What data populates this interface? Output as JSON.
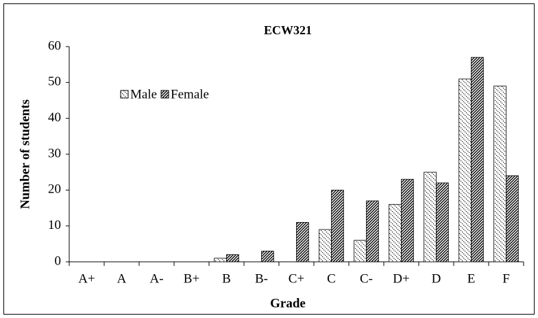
{
  "chart_data": {
    "type": "bar",
    "title": "ECW321",
    "x_label": "Grade",
    "y_label": "Number of students",
    "categories": [
      "A+",
      "A",
      "A-",
      "B+",
      "B",
      "B-",
      "C+",
      "C",
      "C-",
      "D+",
      "D",
      "E",
      "F"
    ],
    "series": [
      {
        "name": "Male",
        "color": "#000000",
        "values": [
          0,
          0,
          0,
          0,
          1,
          0,
          0,
          9,
          6,
          16,
          25,
          51,
          49
        ]
      },
      {
        "name": "Female",
        "color": "#000000",
        "values": [
          0,
          0,
          0,
          0,
          2,
          3,
          11,
          20,
          17,
          23,
          22,
          57,
          24
        ]
      }
    ],
    "ylim": [
      0,
      60
    ],
    "yticks": [
      0,
      10,
      20,
      30,
      40,
      50,
      60
    ],
    "grid": false,
    "legend": "upper left"
  }
}
